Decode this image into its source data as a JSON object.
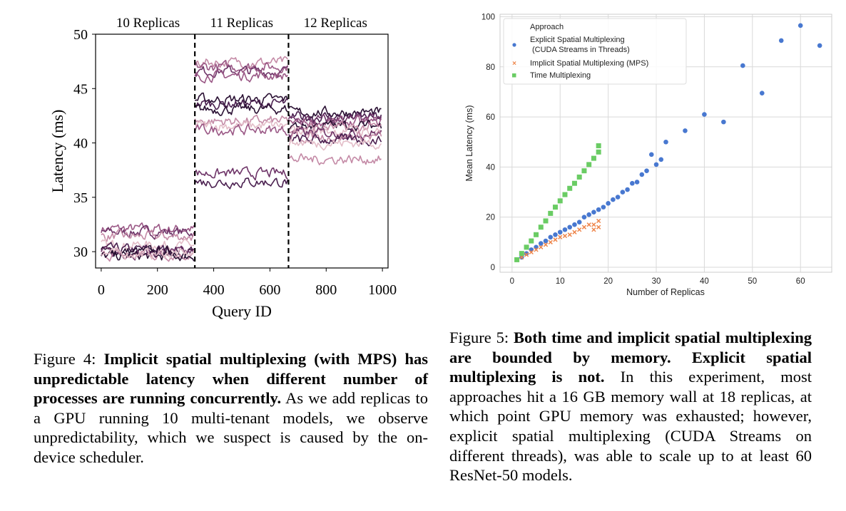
{
  "figure4": {
    "caption_label": "Figure 4:",
    "caption_bold": "Implicit spatial multiplexing (with MPS) has unpredictable latency when different number of processes are running concurrently.",
    "caption_rest": "As we add replicas to a GPU running 10 multi-tenant models, we observe unpredictability, which we suspect is caused by the on-device scheduler."
  },
  "figure5": {
    "caption_label": "Figure 5:",
    "caption_bold": "Both time and implicit spatial multiplexing are bounded by memory. Explicit spatial multiplexing is not.",
    "caption_rest": "In this experiment, most approaches hit a 16 GB memory wall at 18 replicas, at which point GPU memory was exhausted; however, explicit spatial multiplexing (CUDA Streams on different threads), was able to scale up to at least 60 ResNet-50 models."
  },
  "chart_data": [
    {
      "type": "line",
      "xlabel": "Query ID",
      "ylabel": "Latency (ms)",
      "xlim": [
        -20,
        1020
      ],
      "ylim": [
        28.5,
        50
      ],
      "xticks": [
        0,
        200,
        400,
        600,
        800,
        1000
      ],
      "yticks": [
        30,
        35,
        40,
        45,
        50
      ],
      "grid": false,
      "regions": [
        {
          "label": "10 Replicas",
          "x_start": 0,
          "x_end": 333
        },
        {
          "label": "11 Replicas",
          "x_start": 333,
          "x_end": 666
        },
        {
          "label": "12 Replicas",
          "x_start": 666,
          "x_end": 1000
        }
      ],
      "dividers": [
        333,
        666
      ],
      "palette": [
        "#2a1033",
        "#4a1f4f",
        "#6e3468",
        "#9a5785",
        "#c48aa6",
        "#e3bdc8"
      ],
      "segments": [
        {
          "x_start": 0,
          "x_end": 333,
          "levels": [
            {
              "y": 32.1,
              "color": 3
            },
            {
              "y": 31.8,
              "color": 2
            },
            {
              "y": 31.4,
              "color": 4
            },
            {
              "y": 30.6,
              "color": 5
            },
            {
              "y": 30.2,
              "color": 1
            },
            {
              "y": 30.0,
              "color": 0
            },
            {
              "y": 29.9,
              "color": 2
            },
            {
              "y": 29.7,
              "color": 4
            },
            {
              "y": 29.6,
              "color": 0
            },
            {
              "y": 29.8,
              "color": 5
            }
          ]
        },
        {
          "x_start": 333,
          "x_end": 666,
          "levels": [
            {
              "y": 47.4,
              "color": 4
            },
            {
              "y": 47.0,
              "color": 3
            },
            {
              "y": 46.6,
              "color": 2
            },
            {
              "y": 46.2,
              "color": 3
            },
            {
              "y": 44.0,
              "color": 0
            },
            {
              "y": 43.6,
              "color": 1
            },
            {
              "y": 43.1,
              "color": 0
            },
            {
              "y": 42.0,
              "color": 4
            },
            {
              "y": 41.6,
              "color": 5
            },
            {
              "y": 41.2,
              "color": 3
            },
            {
              "y": 37.2,
              "color": 2
            },
            {
              "y": 36.4,
              "color": 1
            }
          ]
        },
        {
          "x_start": 666,
          "x_end": 1000,
          "levels": [
            {
              "y": 42.8,
              "color": 0
            },
            {
              "y": 42.4,
              "color": 1
            },
            {
              "y": 42.1,
              "color": 2
            },
            {
              "y": 41.9,
              "color": 3
            },
            {
              "y": 41.6,
              "color": 0
            },
            {
              "y": 41.4,
              "color": 4
            },
            {
              "y": 41.1,
              "color": 5
            },
            {
              "y": 40.9,
              "color": 2
            },
            {
              "y": 40.6,
              "color": 4
            },
            {
              "y": 40.3,
              "color": 1
            },
            {
              "y": 40.0,
              "color": 5
            },
            {
              "y": 38.5,
              "color": 4
            }
          ]
        }
      ]
    },
    {
      "type": "scatter",
      "xlabel": "Number of Replicas",
      "ylabel": "Mean Latency (ms)",
      "xlim": [
        -2.5,
        66.5
      ],
      "ylim": [
        -2,
        101
      ],
      "xticks": [
        0,
        10,
        20,
        30,
        40,
        50,
        60
      ],
      "yticks": [
        0,
        20,
        40,
        60,
        80,
        100
      ],
      "grid": true,
      "legend": {
        "position": "top-left",
        "title": "Approach",
        "entries": [
          {
            "label": "Explicit Spatial Multiplexing",
            "label2": "(CUDA Streams in Threads)",
            "color": "#4878d0",
            "marker": "circle"
          },
          {
            "label": "Implicit Spatial Multiplexing (MPS)",
            "color": "#ee854a",
            "marker": "x"
          },
          {
            "label": "Time Multiplexing",
            "color": "#6acc64",
            "marker": "square"
          }
        ]
      },
      "series": [
        {
          "name": "Explicit Spatial Multiplexing (CUDA Streams in Threads)",
          "color": "#4878d0",
          "marker": "circle",
          "points": [
            [
              2,
              4
            ],
            [
              3,
              5.5
            ],
            [
              4,
              7
            ],
            [
              5,
              8
            ],
            [
              6,
              9.5
            ],
            [
              7,
              10.5
            ],
            [
              8,
              12
            ],
            [
              9,
              13
            ],
            [
              10,
              14
            ],
            [
              11,
              15
            ],
            [
              12,
              16
            ],
            [
              13,
              17
            ],
            [
              14,
              18
            ],
            [
              15,
              20
            ],
            [
              16,
              21
            ],
            [
              17,
              22
            ],
            [
              18,
              23
            ],
            [
              19,
              24
            ],
            [
              20,
              25.5
            ],
            [
              21,
              27
            ],
            [
              22,
              28
            ],
            [
              23,
              30
            ],
            [
              24,
              31
            ],
            [
              25,
              33.5
            ],
            [
              26,
              34
            ],
            [
              27,
              37
            ],
            [
              28,
              38.5
            ],
            [
              29,
              45
            ],
            [
              30,
              41
            ],
            [
              31,
              43
            ],
            [
              32,
              50
            ],
            [
              36,
              54.5
            ],
            [
              40,
              61
            ],
            [
              44,
              58
            ],
            [
              48,
              80.5
            ],
            [
              52,
              69.5
            ],
            [
              56,
              90.5
            ],
            [
              60,
              96.5
            ],
            [
              64,
              88.5
            ]
          ]
        },
        {
          "name": "Implicit Spatial Multiplexing (MPS)",
          "color": "#ee854a",
          "marker": "x",
          "points": [
            [
              1,
              3
            ],
            [
              2,
              4
            ],
            [
              3,
              5
            ],
            [
              4,
              6
            ],
            [
              5,
              7
            ],
            [
              6,
              8
            ],
            [
              7,
              9
            ],
            [
              8,
              10
            ],
            [
              9,
              11
            ],
            [
              10,
              12
            ],
            [
              11,
              12.5
            ],
            [
              12,
              13
            ],
            [
              13,
              14
            ],
            [
              14,
              15
            ],
            [
              15,
              16
            ],
            [
              16,
              17
            ],
            [
              17,
              17
            ],
            [
              18,
              18.5
            ],
            [
              17,
              15
            ],
            [
              18,
              16
            ]
          ]
        },
        {
          "name": "Time Multiplexing",
          "color": "#6acc64",
          "marker": "square",
          "points": [
            [
              1,
              3
            ],
            [
              2,
              5.5
            ],
            [
              3,
              8
            ],
            [
              4,
              10.5
            ],
            [
              5,
              13
            ],
            [
              6,
              16
            ],
            [
              7,
              18.5
            ],
            [
              8,
              21.5
            ],
            [
              9,
              24
            ],
            [
              10,
              26.5
            ],
            [
              11,
              29
            ],
            [
              12,
              31.5
            ],
            [
              13,
              33.5
            ],
            [
              14,
              36
            ],
            [
              15,
              38.5
            ],
            [
              16,
              41
            ],
            [
              17,
              43.5
            ],
            [
              18,
              46
            ],
            [
              18,
              48.5
            ]
          ]
        }
      ]
    }
  ]
}
